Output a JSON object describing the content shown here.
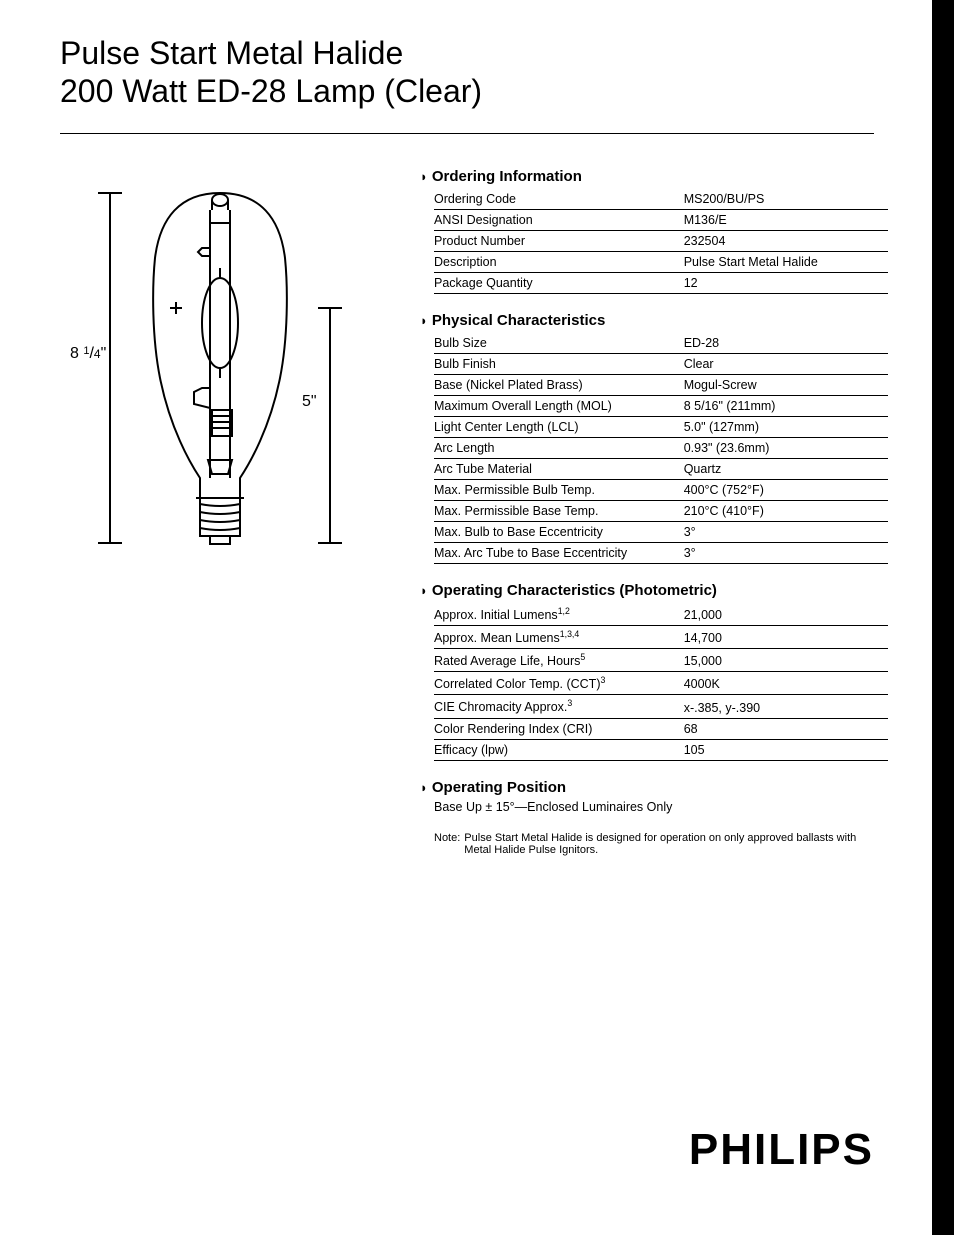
{
  "title_line1": "Pulse Start Metal Halide",
  "title_line2": "200 Watt ED-28 Lamp (Clear)",
  "diagram": {
    "height_label": "8 1/4\"",
    "lcl_label": "5\"",
    "stroke": "#000000",
    "stroke_width": 2
  },
  "sections": {
    "ordering": {
      "heading": "Ordering Information",
      "rows": [
        {
          "label": "Ordering Code",
          "value": "MS200/BU/PS"
        },
        {
          "label": "ANSI Designation",
          "value": "M136/E"
        },
        {
          "label": "Product Number",
          "value": "232504"
        },
        {
          "label": "Description",
          "value": "Pulse Start Metal Halide"
        },
        {
          "label": "Package Quantity",
          "value": "12"
        }
      ]
    },
    "physical": {
      "heading": "Physical Characteristics",
      "rows": [
        {
          "label": "Bulb Size",
          "value": "ED-28"
        },
        {
          "label": "Bulb Finish",
          "value": "Clear"
        },
        {
          "label": "Base (Nickel Plated Brass)",
          "value": "Mogul-Screw"
        },
        {
          "label": "Maximum Overall Length (MOL)",
          "value": "8 5/16\" (211mm)"
        },
        {
          "label": "Light Center Length (LCL)",
          "value": "5.0\" (127mm)"
        },
        {
          "label": "Arc Length",
          "value": "0.93\" (23.6mm)"
        },
        {
          "label": "Arc Tube Material",
          "value": "Quartz"
        },
        {
          "label": "Max. Permissible Bulb Temp.",
          "value": "400°C (752°F)"
        },
        {
          "label": "Max. Permissible Base Temp.",
          "value": "210°C (410°F)"
        },
        {
          "label": "Max. Bulb to Base Eccentricity",
          "value": "3°"
        },
        {
          "label": "Max. Arc Tube to Base Eccentricity",
          "value": "3°"
        }
      ]
    },
    "operating": {
      "heading": "Operating Characteristics (Photometric)",
      "rows": [
        {
          "label": "Approx. Initial Lumens",
          "sup": "1,2",
          "value": "21,000"
        },
        {
          "label": "Approx. Mean Lumens",
          "sup": "1,3,4",
          "value": "14,700"
        },
        {
          "label": "Rated Average Life, Hours",
          "sup": "5",
          "value": "15,000"
        },
        {
          "label": "Correlated Color Temp. (CCT)",
          "sup": "3",
          "value": "4000K"
        },
        {
          "label": "CIE Chromacity Approx.",
          "sup": "3",
          "value": "x-.385, y-.390"
        },
        {
          "label": "Color Rendering Index (CRI)",
          "value": "68"
        },
        {
          "label": "Efficacy (lpw)",
          "value": "105"
        }
      ]
    },
    "position": {
      "heading": "Operating Position",
      "text": "Base Up ± 15°—Enclosed Luminaires Only"
    },
    "note": {
      "label": "Note:",
      "text": "Pulse Start Metal Halide is designed for operation on only approved ballasts with Metal Halide Pulse Ignitors."
    }
  },
  "logo": "PHILIPS",
  "colors": {
    "text": "#000000",
    "rule": "#000000",
    "background": "#ffffff"
  }
}
